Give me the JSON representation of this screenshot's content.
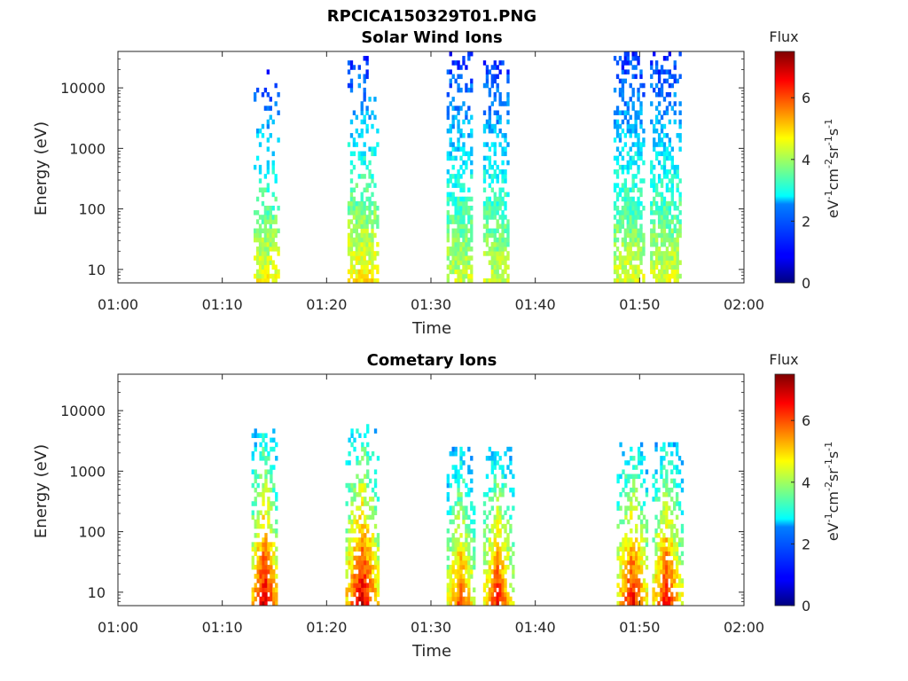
{
  "figure_title": "RPCICA150329T01.PNG",
  "chart_data": [
    {
      "type": "heatmap",
      "title": "Solar Wind Ions",
      "xlabel": "Time",
      "ylabel": "Energy (eV)",
      "x_ticks": [
        "01:00",
        "01:10",
        "01:20",
        "01:30",
        "01:40",
        "01:50",
        "02:00"
      ],
      "xlim_minutes": [
        0,
        60
      ],
      "y_scale": "log",
      "ylim": [
        6,
        40000
      ],
      "y_ticks": [
        10,
        100,
        1000,
        10000
      ],
      "y_tick_labels": [
        "10",
        "100",
        "1000",
        "10000"
      ],
      "colorbar": {
        "title": "Flux",
        "label_base": "eV",
        "label_exp1": "-1",
        "label_mid1": "cm",
        "label_exp2": "-2",
        "label_mid2": "sr",
        "label_exp3": "-1",
        "label_mid3": "s",
        "label_exp4": "-1",
        "range": [
          0,
          7.5
        ],
        "ticks": [
          0,
          2,
          4,
          6
        ],
        "tick_labels": [
          "0",
          "2",
          "4",
          "6"
        ],
        "colormap": "jet"
      },
      "bursts": [
        {
          "start_min": 13.0,
          "end_min": 15.3,
          "max_energy_ev": 20000,
          "peak_flux": 4.6,
          "density": 0.45
        },
        {
          "start_min": 22.0,
          "end_min": 25.0,
          "max_energy_ev": 30000,
          "peak_flux": 4.8,
          "density": 0.5
        },
        {
          "start_min": 31.5,
          "end_min": 34.0,
          "max_energy_ev": 35000,
          "peak_flux": 4.3,
          "density": 0.85
        },
        {
          "start_min": 35.0,
          "end_min": 37.5,
          "max_energy_ev": 30000,
          "peak_flux": 4.3,
          "density": 0.85
        },
        {
          "start_min": 47.5,
          "end_min": 50.5,
          "max_energy_ev": 35000,
          "peak_flux": 4.4,
          "density": 0.85
        },
        {
          "start_min": 51.0,
          "end_min": 54.0,
          "max_energy_ev": 35000,
          "peak_flux": 4.4,
          "density": 0.85
        }
      ]
    },
    {
      "type": "heatmap",
      "title": "Cometary Ions",
      "xlabel": "Time",
      "ylabel": "Energy (eV)",
      "x_ticks": [
        "01:00",
        "01:10",
        "01:20",
        "01:30",
        "01:40",
        "01:50",
        "02:00"
      ],
      "xlim_minutes": [
        0,
        60
      ],
      "y_scale": "log",
      "ylim": [
        6,
        40000
      ],
      "y_ticks": [
        10,
        100,
        1000,
        10000
      ],
      "y_tick_labels": [
        "10",
        "100",
        "1000",
        "10000"
      ],
      "colorbar": {
        "title": "Flux",
        "label_base": "eV",
        "label_exp1": "-1",
        "label_mid1": "cm",
        "label_exp2": "-2",
        "label_mid2": "sr",
        "label_exp3": "-1",
        "label_mid3": "s",
        "label_exp4": "-1",
        "range": [
          0,
          7.5
        ],
        "ticks": [
          0,
          2,
          4,
          6
        ],
        "tick_labels": [
          "0",
          "2",
          "4",
          "6"
        ],
        "colormap": "jet"
      },
      "bursts": [
        {
          "start_min": 12.8,
          "end_min": 15.3,
          "max_energy_ev": 5000,
          "peak_flux": 7.0,
          "density": 0.8
        },
        {
          "start_min": 21.8,
          "end_min": 25.0,
          "max_energy_ev": 6000,
          "peak_flux": 7.0,
          "density": 0.8
        },
        {
          "start_min": 31.5,
          "end_min": 34.2,
          "max_energy_ev": 2500,
          "peak_flux": 6.2,
          "density": 0.85
        },
        {
          "start_min": 35.0,
          "end_min": 37.8,
          "max_energy_ev": 2500,
          "peak_flux": 6.6,
          "density": 0.85
        },
        {
          "start_min": 47.8,
          "end_min": 50.8,
          "max_energy_ev": 3000,
          "peak_flux": 6.7,
          "density": 0.85
        },
        {
          "start_min": 51.2,
          "end_min": 54.0,
          "max_energy_ev": 3000,
          "peak_flux": 6.7,
          "density": 0.85
        }
      ]
    }
  ]
}
